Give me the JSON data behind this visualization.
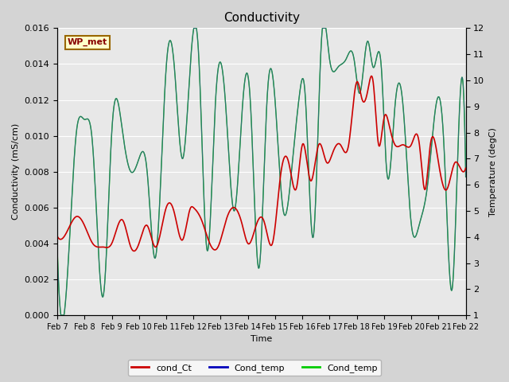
{
  "title": "Conductivity",
  "xlabel": "Time",
  "ylabel_left": "Conductivity (mS/cm)",
  "ylabel_right": "Temperature (degC)",
  "ylim_left": [
    0.0,
    0.016
  ],
  "ylim_right": [
    1.0,
    12.0
  ],
  "yticks_left": [
    0.0,
    0.002,
    0.004,
    0.006,
    0.008,
    0.01,
    0.012,
    0.014,
    0.016
  ],
  "yticks_right": [
    1.0,
    2.0,
    3.0,
    4.0,
    5.0,
    6.0,
    7.0,
    8.0,
    9.0,
    10.0,
    11.0,
    12.0
  ],
  "xtick_labels": [
    "Feb 7",
    "Feb 8",
    "Feb 9",
    "Feb 10",
    "Feb 11",
    "Feb 12",
    "Feb 13",
    "Feb 14",
    "Feb 15",
    "Feb 16",
    "Feb 17",
    "Feb 18",
    "Feb 19",
    "Feb 20",
    "Feb 21",
    "Feb 22"
  ],
  "wp_met_label": "WP_met",
  "legend_entries": [
    "cond_Ct",
    "Cond_temp",
    "Cond_temp"
  ],
  "legend_colors": [
    "#cc0000",
    "#0000bb",
    "#00cc00"
  ],
  "background_color": "#d4d4d4",
  "plot_bg_color": "#e8e8e8",
  "grid_color": "#ffffff",
  "title_fontsize": 11,
  "label_fontsize": 8,
  "tick_fontsize": 8,
  "red_line_color": "#cc0000",
  "green_line_color": "#00cc00",
  "blue_line_color": "#4444aa",
  "wp_met_bg": "#ffffcc",
  "wp_met_border": "#996600",
  "wp_met_text_color": "#880000",
  "n_days": 15,
  "temp_keypoints_x": [
    0,
    0.3,
    0.7,
    1.0,
    1.3,
    1.7,
    2.0,
    2.4,
    2.7,
    3.0,
    3.3,
    3.6,
    4.0,
    4.3,
    4.6,
    4.9,
    5.2,
    5.5,
    5.8,
    6.2,
    6.5,
    6.8,
    7.1,
    7.4,
    7.7,
    8.0,
    8.3,
    8.6,
    8.9,
    9.1,
    9.4,
    9.7,
    10.0,
    10.3,
    10.6,
    10.9,
    11.1,
    11.4,
    11.6,
    11.9,
    12.1,
    12.4,
    12.7,
    13.0,
    13.3,
    13.6,
    13.9,
    14.2,
    14.5,
    14.8,
    15.0
  ],
  "temp_keypoints_y": [
    3.5,
    1.5,
    8.0,
    8.5,
    7.5,
    1.8,
    8.0,
    8.0,
    6.5,
    7.0,
    6.5,
    3.2,
    10.5,
    10.5,
    7.0,
    10.8,
    10.8,
    3.5,
    9.0,
    8.8,
    5.0,
    9.0,
    9.0,
    2.8,
    9.2,
    9.2,
    5.0,
    6.5,
    9.5,
    9.5,
    4.0,
    11.5,
    10.8,
    10.5,
    10.8,
    10.8,
    9.5,
    11.5,
    10.5,
    10.5,
    6.5,
    9.0,
    9.0,
    4.5,
    4.5,
    6.0,
    9.0,
    7.5,
    2.0,
    9.5,
    6.3
  ],
  "cond_keypoints_x": [
    0,
    0.3,
    0.7,
    1.0,
    1.3,
    1.7,
    2.0,
    2.4,
    2.7,
    3.0,
    3.3,
    3.6,
    4.0,
    4.3,
    4.6,
    4.9,
    5.0,
    5.3,
    5.6,
    5.9,
    6.2,
    6.5,
    6.8,
    7.0,
    7.3,
    7.6,
    7.9,
    8.2,
    8.5,
    8.8,
    9.0,
    9.3,
    9.6,
    9.9,
    10.1,
    10.4,
    10.7,
    11.0,
    11.2,
    11.4,
    11.6,
    11.8,
    12.0,
    12.2,
    12.4,
    12.7,
    13.0,
    13.3,
    13.5,
    13.7,
    14.0,
    14.3,
    14.6,
    14.8,
    15.0
  ],
  "cond_keypoints_y": [
    0.0044,
    0.0045,
    0.0055,
    0.005,
    0.004,
    0.0038,
    0.004,
    0.0053,
    0.0038,
    0.004,
    0.005,
    0.0038,
    0.006,
    0.0057,
    0.0042,
    0.006,
    0.006,
    0.0053,
    0.004,
    0.0038,
    0.0053,
    0.006,
    0.005,
    0.004,
    0.005,
    0.0052,
    0.004,
    0.0078,
    0.0085,
    0.0072,
    0.0095,
    0.0075,
    0.0095,
    0.0085,
    0.009,
    0.0095,
    0.0095,
    0.013,
    0.012,
    0.0125,
    0.013,
    0.0095,
    0.011,
    0.0105,
    0.0095,
    0.0095,
    0.0095,
    0.0095,
    0.007,
    0.0095,
    0.0085,
    0.007,
    0.0085,
    0.0082,
    0.0082
  ]
}
